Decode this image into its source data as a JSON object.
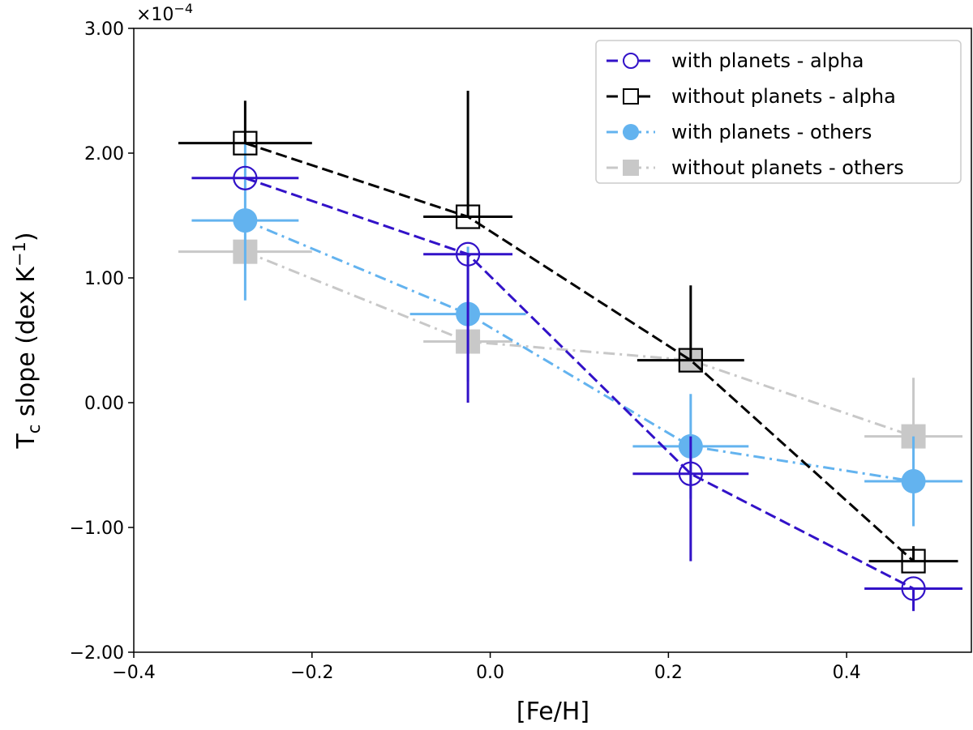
{
  "chart_data": {
    "type": "scatter",
    "xlabel": "[Fe/H]",
    "ylabel_main": "T",
    "ylabel_sub": "c",
    "ylabel_rest": " slope (dex K",
    "ylabel_sup": "−1",
    "ylabel_end": ")",
    "offset_base": "×10",
    "offset_exp": "−4",
    "xlim": [
      -0.4,
      0.54
    ],
    "ylim": [
      -2.0,
      3.0
    ],
    "xticks": [
      -0.4,
      -0.2,
      0.0,
      0.2,
      0.4
    ],
    "xtick_labels": [
      "−0.4",
      "−0.2",
      "0.0",
      "0.2",
      "0.4"
    ],
    "yticks": [
      -2.0,
      -1.0,
      0.0,
      1.0,
      2.0,
      3.0
    ],
    "ytick_labels": [
      "−2.00",
      "−1.00",
      "0.00",
      "1.00",
      "2.00",
      "3.00"
    ],
    "grid": false,
    "legend_position": "top-right",
    "series": [
      {
        "name": "without planets - others",
        "color": "#c8c8c8",
        "linestyle": "dashdot",
        "marker": "filled-square",
        "x": [
          -0.275,
          -0.025,
          0.225,
          0.475
        ],
        "y": [
          1.21,
          0.49,
          0.34,
          -0.27
        ],
        "xerr": [
          0.075,
          0.05,
          0.06,
          0.055
        ],
        "yerr_low": [
          0.0,
          0.0,
          0.0,
          0.0
        ],
        "yerr_high": [
          0.0,
          0.0,
          0.0,
          0.47
        ]
      },
      {
        "name": "with planets - others",
        "color": "#63b3ef",
        "linestyle": "dashdot",
        "marker": "filled-circle",
        "x": [
          -0.275,
          -0.025,
          0.225,
          0.475
        ],
        "y": [
          1.46,
          0.71,
          -0.35,
          -0.63
        ],
        "xerr": [
          0.06,
          0.065,
          0.065,
          0.055
        ],
        "yerr_low": [
          0.64,
          0.54,
          0.42,
          0.36
        ],
        "yerr_high": [
          0.64,
          0.54,
          0.42,
          0.36
        ]
      },
      {
        "name": "with planets - alpha",
        "color": "#3212c8",
        "linestyle": "dashed",
        "marker": "open-circle",
        "x": [
          -0.275,
          -0.025,
          0.225,
          0.475
        ],
        "y": [
          1.8,
          1.19,
          -0.57,
          -1.49
        ],
        "xerr": [
          0.06,
          0.05,
          0.065,
          0.055
        ],
        "yerr_low": [
          0.0,
          1.19,
          0.7,
          0.18
        ],
        "yerr_high": [
          0.0,
          0.0,
          0.3,
          0.0
        ]
      },
      {
        "name": "without planets - alpha",
        "color": "#000000",
        "linestyle": "dashed",
        "marker": "open-square",
        "x": [
          -0.275,
          -0.025,
          0.225,
          0.475
        ],
        "y": [
          2.08,
          1.49,
          0.34,
          -1.27
        ],
        "xerr": [
          0.075,
          0.05,
          0.06,
          0.05
        ],
        "yerr_low": [
          0.0,
          0.0,
          0.0,
          0.0
        ],
        "yerr_high": [
          0.34,
          1.01,
          0.6,
          0.12
        ]
      }
    ],
    "legend_order": [
      "with planets - alpha",
      "without planets - alpha",
      "with planets - others",
      "without planets - others"
    ]
  }
}
